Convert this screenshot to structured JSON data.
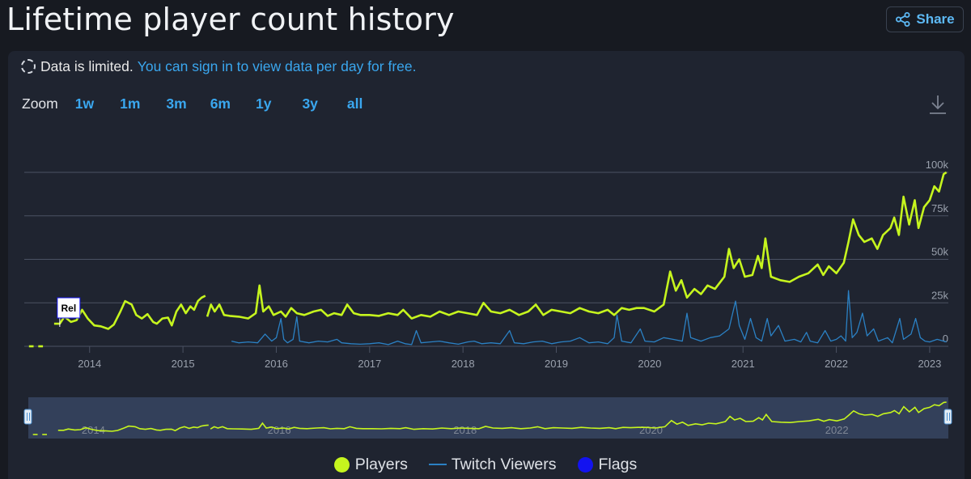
{
  "page": {
    "title": "Lifetime player count history",
    "share_label": "Share",
    "notice": {
      "limited": "Data is limited.",
      "link": "You can sign in to view data per day for free."
    },
    "zoom": {
      "label": "Zoom",
      "options": [
        "1w",
        "1m",
        "3m",
        "6m",
        "1y",
        "3y",
        "all"
      ]
    }
  },
  "colors": {
    "players": "#c6f51e",
    "twitch": "#2b81c4",
    "flags": "#1313f0",
    "link": "#3aa7ef",
    "grid": "#4b5263"
  },
  "chart_data": {
    "type": "line",
    "title": "Lifetime player count history",
    "x_range": [
      2013.3,
      2023.2
    ],
    "ylim": [
      0,
      100000
    ],
    "y_ticks": [
      0,
      25000,
      50000,
      75000,
      100000
    ],
    "y_tick_labels": [
      "0",
      "25k",
      "50k",
      "75k",
      "100k"
    ],
    "x_ticks": [
      2014,
      2015,
      2016,
      2017,
      2018,
      2019,
      2020,
      2021,
      2022,
      2023
    ],
    "x_tick_labels": [
      "2014",
      "2015",
      "2016",
      "2017",
      "2018",
      "2019",
      "2020",
      "2021",
      "2022",
      "2023"
    ],
    "navigator_labels": [
      {
        "year": 2014,
        "text": "2014"
      },
      {
        "year": 2016,
        "text": "2016"
      },
      {
        "year": 2018,
        "text": "2018"
      },
      {
        "year": 2020,
        "text": "2020"
      },
      {
        "year": 2022,
        "text": "2022"
      }
    ],
    "flags": [
      {
        "x": 2013.68,
        "label": "Rel"
      }
    ],
    "series": [
      {
        "name": "Players",
        "segments": [
          [
            [
              2013.35,
              0
            ],
            [
              2013.4,
              0
            ]
          ],
          [
            [
              2013.45,
              0
            ],
            [
              2013.5,
              0
            ]
          ],
          [
            [
              2013.62,
              13000
            ],
            [
              2013.68,
              13000
            ],
            [
              2013.73,
              17000
            ],
            [
              2013.8,
              14000
            ],
            [
              2013.86,
              15000
            ],
            [
              2013.92,
              21000
            ],
            [
              2013.98,
              16000
            ],
            [
              2014.05,
              12000
            ],
            [
              2014.12,
              11500
            ],
            [
              2014.2,
              10000
            ],
            [
              2014.26,
              12500
            ],
            [
              2014.33,
              20000
            ],
            [
              2014.38,
              26000
            ],
            [
              2014.45,
              24000
            ],
            [
              2014.5,
              18000
            ],
            [
              2014.56,
              16000
            ],
            [
              2014.62,
              18500
            ],
            [
              2014.68,
              14000
            ],
            [
              2014.72,
              13000
            ],
            [
              2014.78,
              16000
            ],
            [
              2014.84,
              16500
            ],
            [
              2014.88,
              12000
            ],
            [
              2014.93,
              20000
            ],
            [
              2014.98,
              24000
            ],
            [
              2015.03,
              19000
            ],
            [
              2015.08,
              23000
            ],
            [
              2015.12,
              21000
            ],
            [
              2015.16,
              26000
            ],
            [
              2015.2,
              28000
            ],
            [
              2015.24,
              29000
            ]
          ],
          [
            [
              2015.26,
              17000
            ],
            [
              2015.3,
              24000
            ],
            [
              2015.34,
              20000
            ],
            [
              2015.39,
              24000
            ],
            [
              2015.44,
              18000
            ],
            [
              2015.5,
              17500
            ],
            [
              2015.6,
              17000
            ],
            [
              2015.7,
              16000
            ],
            [
              2015.78,
              19000
            ],
            [
              2015.82,
              35000
            ],
            [
              2015.86,
              20000
            ],
            [
              2015.92,
              23000
            ],
            [
              2015.97,
              18000
            ],
            [
              2016.05,
              20000
            ],
            [
              2016.1,
              17000
            ],
            [
              2016.16,
              22000
            ],
            [
              2016.22,
              19000
            ],
            [
              2016.3,
              18000
            ],
            [
              2016.4,
              20000
            ],
            [
              2016.48,
              21000
            ],
            [
              2016.55,
              17500
            ],
            [
              2016.62,
              19000
            ],
            [
              2016.7,
              18000
            ],
            [
              2016.76,
              24000
            ],
            [
              2016.83,
              19000
            ],
            [
              2016.9,
              18000
            ],
            [
              2017.0,
              18000
            ],
            [
              2017.1,
              17500
            ],
            [
              2017.2,
              19000
            ],
            [
              2017.3,
              18000
            ],
            [
              2017.36,
              21000
            ],
            [
              2017.45,
              16000
            ],
            [
              2017.55,
              18000
            ],
            [
              2017.65,
              17000
            ],
            [
              2017.75,
              20000
            ],
            [
              2017.85,
              18000
            ],
            [
              2017.95,
              20000
            ],
            [
              2018.05,
              19000
            ],
            [
              2018.15,
              18000
            ],
            [
              2018.22,
              25000
            ],
            [
              2018.3,
              20000
            ],
            [
              2018.4,
              19000
            ],
            [
              2018.5,
              21000
            ],
            [
              2018.6,
              18000
            ],
            [
              2018.7,
              20000
            ],
            [
              2018.78,
              24000
            ],
            [
              2018.86,
              18000
            ],
            [
              2018.95,
              21000
            ],
            [
              2019.05,
              20000
            ],
            [
              2019.15,
              19000
            ],
            [
              2019.25,
              22000
            ],
            [
              2019.35,
              20000
            ],
            [
              2019.45,
              19000
            ],
            [
              2019.55,
              21000
            ],
            [
              2019.62,
              18000
            ],
            [
              2019.7,
              22000
            ],
            [
              2019.78,
              21000
            ],
            [
              2019.86,
              22000
            ],
            [
              2019.94,
              22000
            ],
            [
              2020.05,
              20000
            ],
            [
              2020.15,
              24000
            ],
            [
              2020.22,
              43000
            ],
            [
              2020.28,
              32000
            ],
            [
              2020.34,
              38000
            ],
            [
              2020.4,
              28000
            ],
            [
              2020.48,
              33000
            ],
            [
              2020.55,
              30000
            ],
            [
              2020.62,
              35000
            ],
            [
              2020.7,
              33000
            ],
            [
              2020.8,
              40000
            ],
            [
              2020.85,
              56000
            ],
            [
              2020.9,
              45000
            ],
            [
              2020.96,
              50000
            ],
            [
              2021.02,
              40000
            ],
            [
              2021.1,
              41000
            ],
            [
              2021.16,
              52000
            ],
            [
              2021.2,
              45000
            ],
            [
              2021.24,
              62000
            ],
            [
              2021.3,
              40000
            ],
            [
              2021.4,
              38000
            ],
            [
              2021.5,
              37000
            ],
            [
              2021.6,
              40000
            ],
            [
              2021.7,
              42000
            ],
            [
              2021.8,
              47000
            ],
            [
              2021.86,
              41000
            ],
            [
              2021.92,
              46000
            ],
            [
              2022.0,
              42000
            ],
            [
              2022.08,
              48000
            ],
            [
              2022.13,
              60000
            ],
            [
              2022.18,
              73000
            ],
            [
              2022.24,
              64000
            ],
            [
              2022.3,
              60000
            ],
            [
              2022.38,
              62000
            ],
            [
              2022.44,
              56000
            ],
            [
              2022.5,
              64000
            ],
            [
              2022.58,
              68000
            ],
            [
              2022.62,
              74000
            ],
            [
              2022.67,
              64000
            ],
            [
              2022.72,
              86000
            ],
            [
              2022.78,
              70000
            ],
            [
              2022.84,
              84000
            ],
            [
              2022.88,
              68000
            ],
            [
              2022.94,
              80000
            ],
            [
              2023.0,
              84000
            ],
            [
              2023.05,
              92000
            ],
            [
              2023.1,
              89000
            ],
            [
              2023.15,
              99000
            ],
            [
              2023.18,
              100000
            ]
          ]
        ]
      },
      {
        "name": "Twitch Viewers",
        "segments": [
          [
            [
              2015.52,
              3000
            ],
            [
              2015.6,
              2000
            ],
            [
              2015.7,
              2500
            ],
            [
              2015.8,
              2000
            ],
            [
              2015.88,
              7000
            ],
            [
              2015.95,
              3000
            ],
            [
              2016.0,
              5000
            ],
            [
              2016.05,
              16000
            ],
            [
              2016.08,
              4000
            ],
            [
              2016.12,
              2000
            ],
            [
              2016.18,
              4000
            ],
            [
              2016.22,
              17000
            ],
            [
              2016.25,
              3000
            ],
            [
              2016.35,
              2000
            ],
            [
              2016.45,
              3000
            ],
            [
              2016.55,
              2500
            ],
            [
              2016.65,
              4000
            ],
            [
              2016.7,
              2000
            ],
            [
              2016.8,
              1500
            ],
            [
              2016.9,
              1200
            ],
            [
              2017.0,
              1500
            ],
            [
              2017.1,
              2000
            ],
            [
              2017.2,
              1000
            ],
            [
              2017.3,
              3000
            ],
            [
              2017.38,
              1500
            ],
            [
              2017.45,
              1000
            ],
            [
              2017.5,
              9000
            ],
            [
              2017.55,
              2000
            ],
            [
              2017.65,
              2500
            ],
            [
              2017.75,
              3000
            ],
            [
              2017.85,
              2000
            ],
            [
              2017.95,
              1200
            ],
            [
              2018.05,
              2500
            ],
            [
              2018.12,
              3000
            ],
            [
              2018.2,
              1500
            ],
            [
              2018.3,
              2000
            ],
            [
              2018.4,
              1500
            ],
            [
              2018.5,
              9000
            ],
            [
              2018.55,
              2000
            ],
            [
              2018.65,
              1500
            ],
            [
              2018.75,
              2500
            ],
            [
              2018.85,
              3000
            ],
            [
              2018.95,
              1500
            ],
            [
              2019.05,
              2500
            ],
            [
              2019.15,
              3000
            ],
            [
              2019.25,
              5000
            ],
            [
              2019.35,
              2000
            ],
            [
              2019.45,
              2500
            ],
            [
              2019.55,
              1500
            ],
            [
              2019.62,
              5000
            ],
            [
              2019.65,
              18000
            ],
            [
              2019.7,
              3000
            ],
            [
              2019.8,
              2000
            ],
            [
              2019.9,
              10000
            ],
            [
              2019.95,
              3000
            ],
            [
              2020.05,
              2500
            ],
            [
              2020.15,
              5000
            ],
            [
              2020.25,
              4000
            ],
            [
              2020.35,
              3000
            ],
            [
              2020.4,
              19000
            ],
            [
              2020.44,
              5000
            ],
            [
              2020.55,
              3000
            ],
            [
              2020.65,
              5000
            ],
            [
              2020.75,
              6000
            ],
            [
              2020.85,
              10000
            ],
            [
              2020.92,
              26000
            ],
            [
              2020.96,
              12000
            ],
            [
              2021.02,
              4000
            ],
            [
              2021.08,
              16000
            ],
            [
              2021.14,
              5000
            ],
            [
              2021.2,
              3000
            ],
            [
              2021.26,
              16000
            ],
            [
              2021.3,
              6000
            ],
            [
              2021.38,
              12000
            ],
            [
              2021.45,
              3000
            ],
            [
              2021.55,
              4000
            ],
            [
              2021.62,
              2500
            ],
            [
              2021.68,
              8000
            ],
            [
              2021.72,
              3000
            ],
            [
              2021.8,
              2000
            ],
            [
              2021.88,
              9000
            ],
            [
              2021.94,
              3000
            ],
            [
              2022.0,
              4000
            ],
            [
              2022.05,
              6000
            ],
            [
              2022.1,
              3000
            ],
            [
              2022.13,
              32000
            ],
            [
              2022.17,
              5000
            ],
            [
              2022.22,
              8000
            ],
            [
              2022.28,
              19000
            ],
            [
              2022.33,
              6000
            ],
            [
              2022.4,
              10000
            ],
            [
              2022.45,
              3000
            ],
            [
              2022.55,
              5000
            ],
            [
              2022.6,
              2000
            ],
            [
              2022.68,
              16000
            ],
            [
              2022.72,
              4000
            ],
            [
              2022.8,
              7000
            ],
            [
              2022.85,
              16000
            ],
            [
              2022.9,
              5000
            ],
            [
              2022.95,
              3000
            ],
            [
              2023.0,
              2500
            ],
            [
              2023.08,
              4000
            ],
            [
              2023.15,
              3000
            ],
            [
              2023.18,
              2500
            ]
          ]
        ]
      }
    ],
    "legend": [
      {
        "name": "Players",
        "symbol": "dot"
      },
      {
        "name": "Twitch Viewers",
        "symbol": "line"
      },
      {
        "name": "Flags",
        "symbol": "dot"
      }
    ]
  }
}
